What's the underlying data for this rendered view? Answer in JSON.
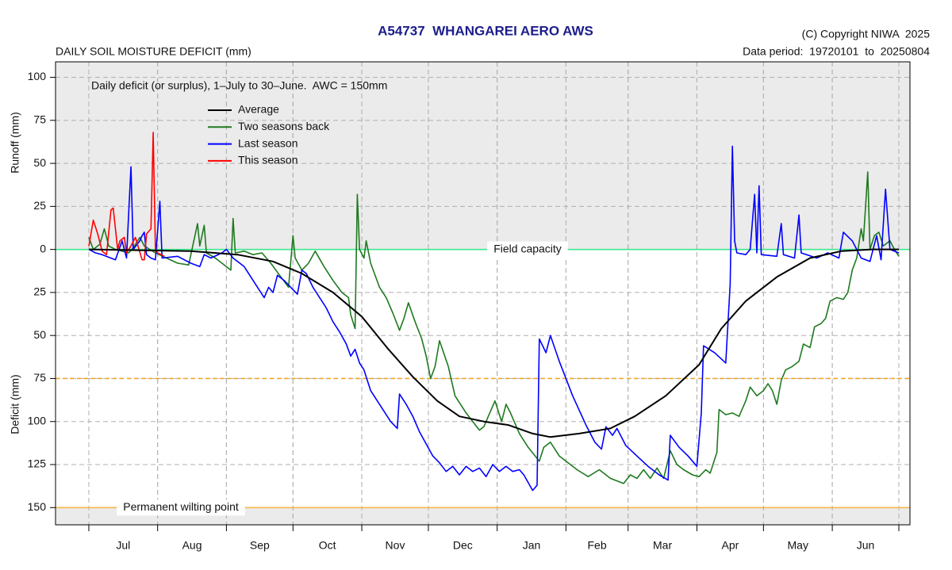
{
  "chart_data": {
    "type": "line",
    "title": "A54737  WHANGAREI AERO AWS",
    "subtitle": "DAILY SOIL MOISTURE DEFICIT (mm)",
    "copyright": "(C) Copyright NIWA  2025",
    "data_period": "Data period:  19720101  to  20250804",
    "annotation": "Daily deficit (or surplus), 1–July to 30–June.  AWC = 150mm",
    "ylabel_upper": "Runoff (mm)",
    "ylabel_lower": "Deficit (mm)",
    "categories": [
      "Jul",
      "Aug",
      "Sep",
      "Oct",
      "Nov",
      "Dec",
      "Jan",
      "Feb",
      "Mar",
      "Apr",
      "May",
      "Jun"
    ],
    "xlim": [
      -15,
      370
    ],
    "ylim": [
      -160,
      109
    ],
    "yticks": [
      100,
      75,
      50,
      25,
      0,
      {
        "value": -25,
        "label": "25"
      },
      {
        "value": -50,
        "label": "50"
      },
      {
        "value": -75,
        "label": "75"
      },
      {
        "value": -100,
        "label": "100"
      },
      {
        "value": -125,
        "label": "125"
      },
      {
        "value": -150,
        "label": "150"
      }
    ],
    "grid": true,
    "reference_lines": [
      {
        "value": 0,
        "label": "Field capacity",
        "color": "#3ee88c",
        "style": "solid"
      },
      {
        "value": -75,
        "color": "#f5a623",
        "style": "dashed"
      },
      {
        "value": -150,
        "label": "Permanent wilting point",
        "color": "#f7b64a",
        "style": "solid"
      }
    ],
    "series": [
      {
        "name": "Average",
        "color": "#000000",
        "x": [
          0,
          46,
          67,
          83,
          96,
          110,
          123,
          135,
          146,
          157,
          167,
          178,
          189,
          200,
          208,
          221,
          235,
          246,
          260,
          275,
          285,
          296,
          310,
          325,
          339,
          353,
          365
        ],
        "values": [
          0,
          -1,
          -3,
          -7,
          -14,
          -25,
          -39,
          -58,
          -74,
          -88,
          -97,
          -100,
          -102,
          -107,
          -109,
          -107,
          -104,
          -97,
          -85,
          -67,
          -46,
          -30,
          -16,
          -5,
          -1,
          0,
          0
        ]
      },
      {
        "name": "Two seasons back",
        "color": "#1f7a1f",
        "x": [
          0,
          2,
          5,
          7,
          9,
          12,
          15,
          18,
          20,
          23,
          25,
          30,
          35,
          40,
          45,
          49,
          50,
          52,
          53,
          57,
          60,
          64,
          65,
          66,
          70,
          74,
          78,
          82,
          86,
          90,
          92,
          93,
          96,
          99,
          102,
          106,
          110,
          114,
          117,
          118,
          120,
          121,
          122,
          124,
          125,
          127,
          131,
          134,
          137,
          140,
          142,
          144,
          147,
          150,
          152,
          154,
          156,
          158,
          162,
          165,
          170,
          173,
          176,
          178,
          180,
          183,
          186,
          188,
          190,
          194,
          198,
          203,
          205,
          208,
          212,
          217,
          220,
          225,
          230,
          235,
          241,
          244,
          247,
          250,
          253,
          256,
          259,
          262,
          265,
          268,
          272,
          275,
          278,
          280,
          283,
          284,
          287,
          290,
          293,
          296,
          298,
          301,
          304,
          306,
          308,
          310,
          312,
          314,
          317,
          320,
          322,
          325,
          327,
          330,
          332,
          334,
          337,
          340,
          342,
          344,
          346,
          348,
          349,
          351,
          352,
          354,
          356,
          358,
          361,
          363,
          365
        ],
        "values": [
          7,
          0,
          3,
          12,
          2,
          0,
          -1,
          -2,
          1,
          7,
          2,
          -2,
          -5,
          -8,
          -9,
          15,
          2,
          14,
          -2,
          -5,
          -8,
          -12,
          18,
          -2,
          -1,
          -3,
          -2,
          -8,
          -15,
          -22,
          8,
          -5,
          -12,
          -8,
          -1,
          -10,
          -18,
          -25,
          -28,
          -38,
          -46,
          32,
          0,
          -5,
          5,
          -8,
          -22,
          -28,
          -37,
          -47,
          -40,
          -31,
          -42,
          -52,
          -62,
          -75,
          -68,
          -53,
          -68,
          -85,
          -95,
          -100,
          -105,
          -103,
          -97,
          -88,
          -100,
          -90,
          -95,
          -107,
          -115,
          -123,
          -115,
          -112,
          -120,
          -125,
          -128,
          -132,
          -128,
          -133,
          -136,
          -131,
          -133,
          -128,
          -133,
          -127,
          -133,
          -117,
          -125,
          -128,
          -131,
          -132,
          -128,
          -130,
          -118,
          -93,
          -96,
          -95,
          -97,
          -88,
          -80,
          -85,
          -82,
          -78,
          -82,
          -90,
          -76,
          -70,
          -68,
          -65,
          -55,
          -57,
          -45,
          -43,
          -40,
          -30,
          -28,
          -29,
          -25,
          -12,
          -5,
          12,
          5,
          45,
          0,
          8,
          10,
          2,
          5,
          0,
          -4
        ]
      },
      {
        "name": "Last season",
        "color": "#0000ff",
        "x": [
          0,
          3,
          6,
          12,
          15,
          17,
          18,
          19,
          20,
          23,
          24,
          25,
          26,
          28,
          30,
          32,
          33,
          40,
          46,
          50,
          52,
          55,
          60,
          62,
          65,
          70,
          75,
          79,
          81,
          83,
          85,
          88,
          91,
          94,
          96,
          98,
          101,
          104,
          107,
          110,
          113,
          116,
          118,
          120,
          122,
          124,
          127,
          130,
          133,
          136,
          139,
          140,
          143,
          146,
          149,
          152,
          155,
          158,
          161,
          164,
          167,
          170,
          173,
          176,
          179,
          182,
          185,
          188,
          191,
          194,
          196,
          200,
          202,
          203,
          206,
          208,
          212,
          218,
          224,
          228,
          231,
          233,
          236,
          238,
          242,
          247,
          252,
          257,
          261,
          262,
          266,
          270,
          274,
          276,
          277,
          282,
          287,
          289,
          290,
          291,
          292,
          296,
          298,
          300,
          301,
          302,
          303,
          310,
          312,
          313,
          318,
          320,
          321,
          328,
          333,
          338,
          340,
          344,
          348,
          352,
          355,
          357,
          359,
          361,
          365
        ],
        "values": [
          0,
          -2,
          -3,
          -6,
          5,
          -5,
          22,
          48,
          0,
          5,
          8,
          10,
          -3,
          -5,
          -6,
          28,
          -5,
          -4,
          -8,
          -10,
          -3,
          -5,
          -2,
          0,
          -5,
          -10,
          -20,
          -28,
          -22,
          -25,
          -15,
          -18,
          -22,
          -26,
          -12,
          -14,
          -22,
          -28,
          -34,
          -42,
          -48,
          -55,
          -62,
          -58,
          -66,
          -70,
          -82,
          -88,
          -94,
          -100,
          -104,
          -84,
          -90,
          -97,
          -106,
          -113,
          -120,
          -124,
          -129,
          -126,
          -131,
          -126,
          -129,
          -127,
          -132,
          -125,
          -129,
          -126,
          -129,
          -128,
          -131,
          -140,
          -137,
          -52,
          -60,
          -50,
          -65,
          -85,
          -102,
          -112,
          -116,
          -103,
          -108,
          -104,
          -114,
          -120,
          -126,
          -131,
          -134,
          -108,
          -115,
          -120,
          -126,
          -95,
          -56,
          -60,
          -66,
          -20,
          60,
          5,
          -2,
          -3,
          0,
          32,
          -2,
          37,
          -3,
          -4,
          15,
          -3,
          -5,
          20,
          -2,
          -5,
          -2,
          -5,
          10,
          5,
          -5,
          -7,
          8,
          -6,
          35,
          0,
          -2
        ]
      },
      {
        "name": "This season",
        "color": "#ff0000",
        "x": [
          0,
          2,
          4,
          6,
          8,
          10,
          11,
          13,
          14,
          16,
          17,
          19,
          21,
          24,
          25,
          26,
          28,
          29,
          30,
          31,
          34
        ],
        "values": [
          2,
          17,
          9,
          -1,
          -3,
          23,
          24,
          0,
          5,
          7,
          -2,
          2,
          7,
          -6,
          -6,
          9,
          12,
          68,
          0,
          -2,
          -4
        ]
      }
    ]
  }
}
